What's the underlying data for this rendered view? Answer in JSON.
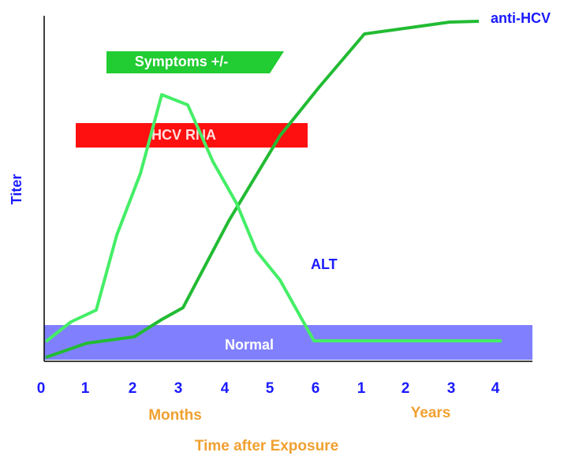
{
  "y_axis_label": "Titer",
  "x_axis_label": "Time after Exposure",
  "months_label": "Months",
  "years_label": "Years",
  "month_ticks": [
    "0",
    "1",
    "2",
    "3",
    "4",
    "5",
    "6"
  ],
  "year_ticks": [
    "1",
    "2",
    "3",
    "4"
  ],
  "bars": {
    "symptoms": "Symptoms +/-",
    "hcv_rna": "HCV RNA",
    "normal": "Normal"
  },
  "curves": {
    "alt": "ALT",
    "anti_hcv": "anti-HCV"
  }
}
